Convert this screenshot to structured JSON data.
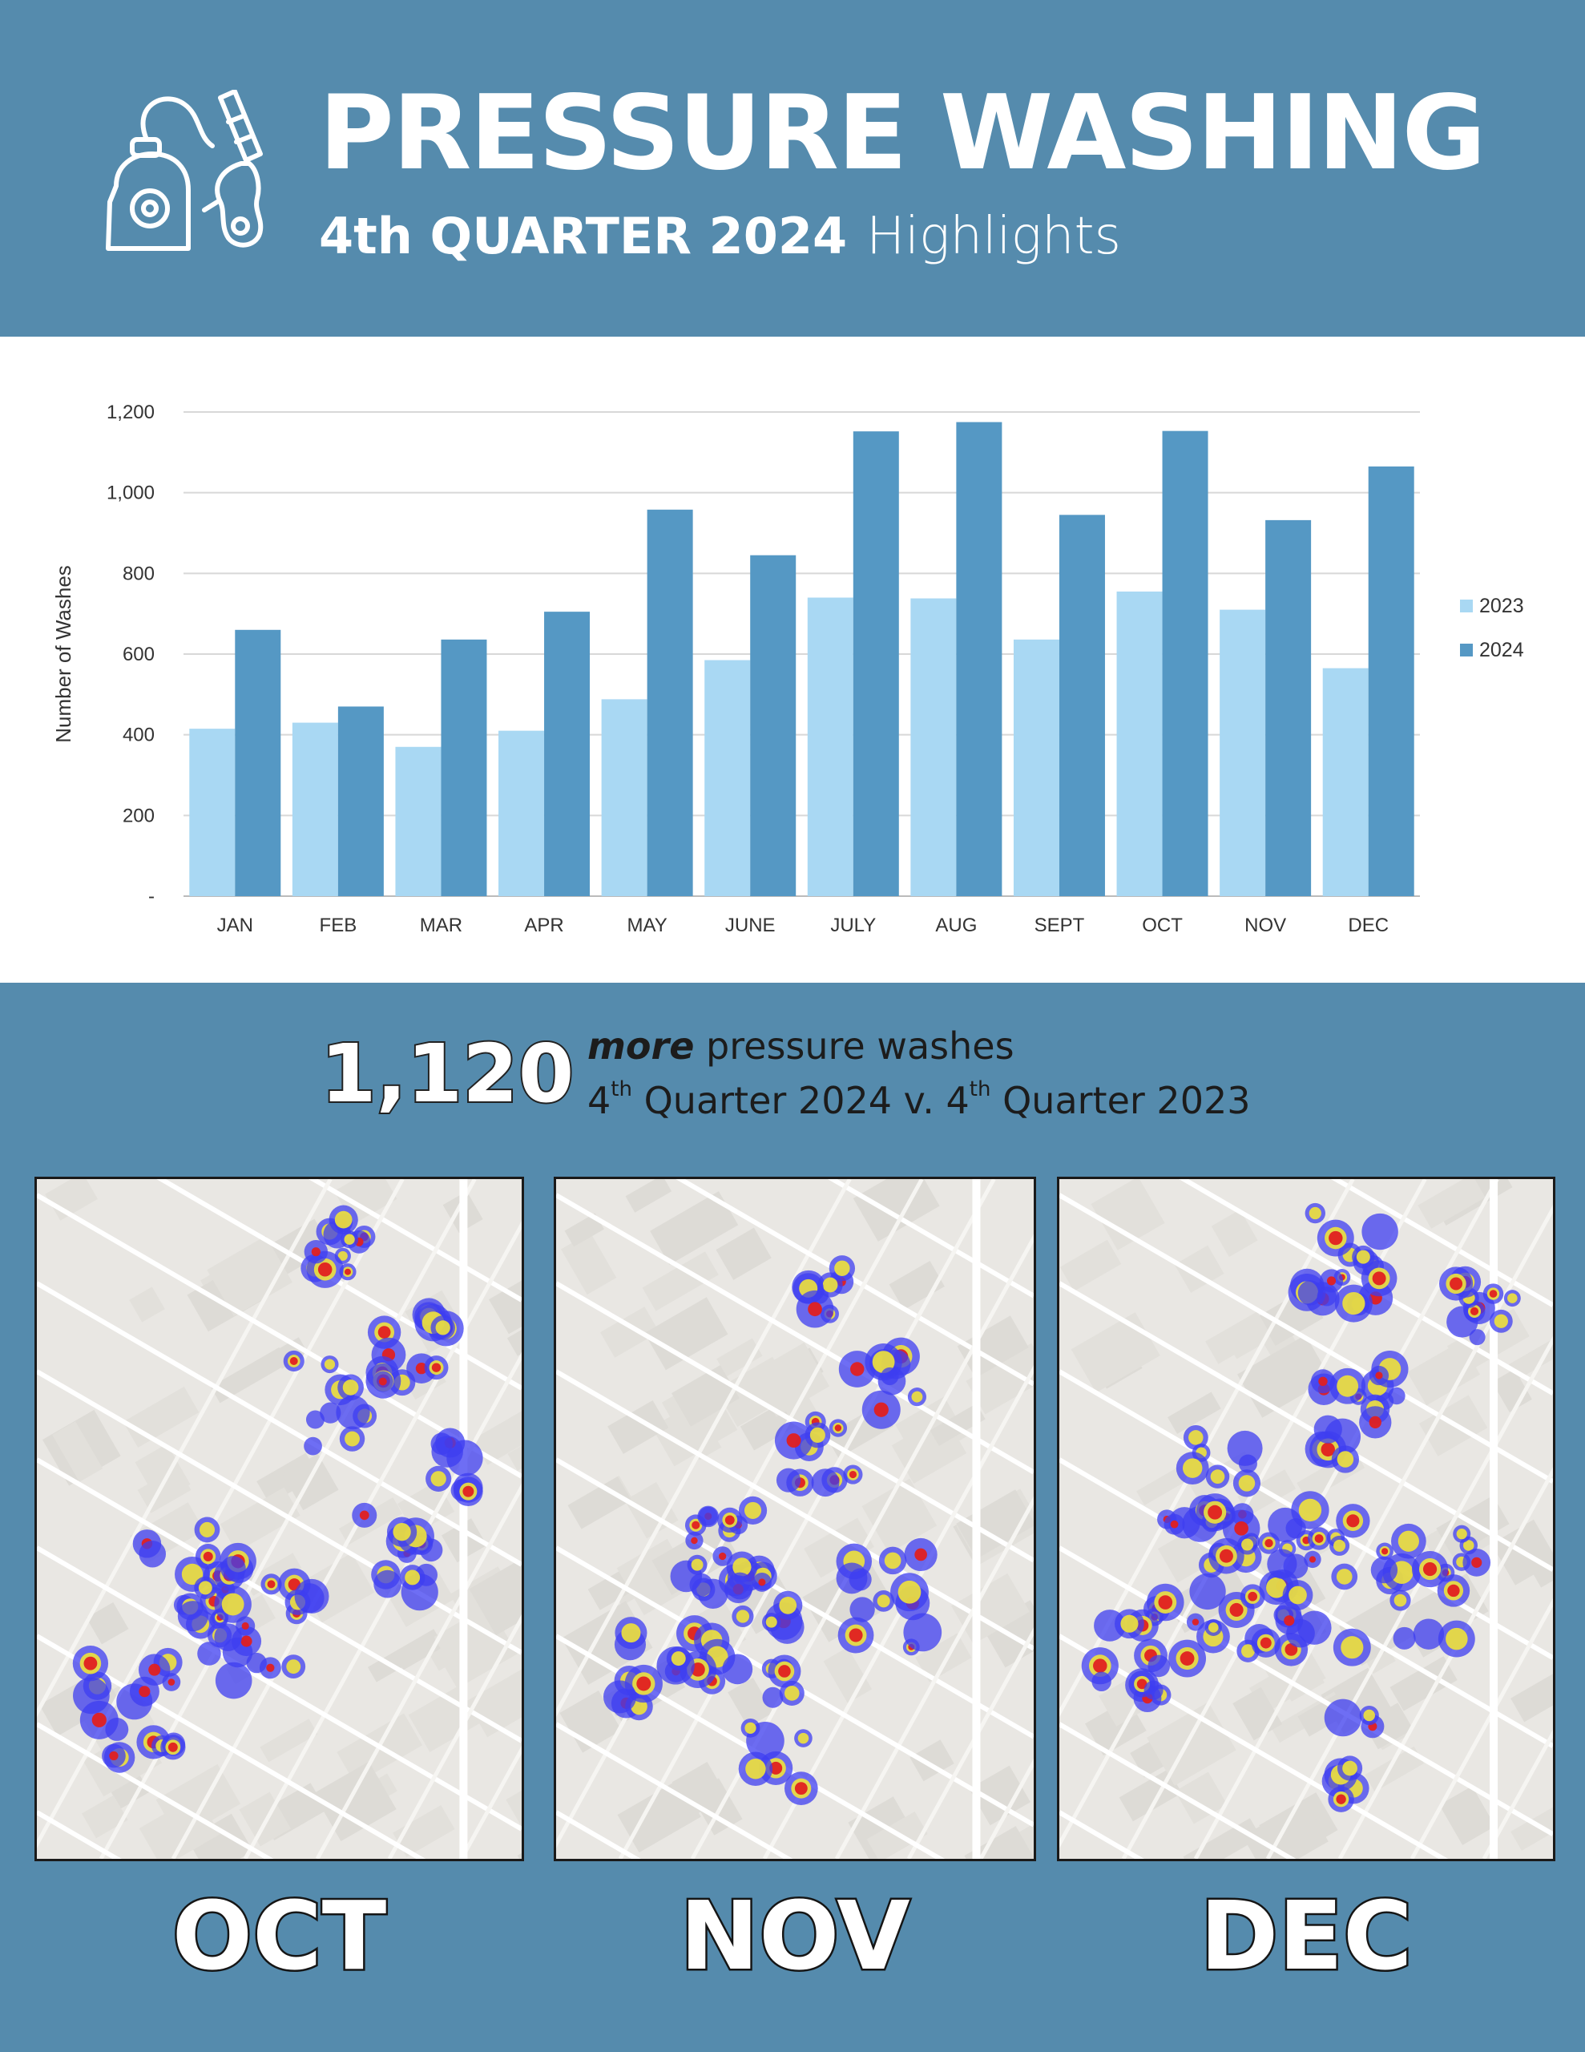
{
  "header": {
    "title": "PRESSURE WASHING",
    "quarter": "4th QUARTER 2024",
    "highlights": "Highlights",
    "icon": "pressure-washer-icon"
  },
  "chart_data": {
    "type": "bar",
    "ylabel": "Number of Washes",
    "ylim": [
      0,
      1200
    ],
    "yticks": [
      "-",
      "200",
      "400",
      "600",
      "800",
      "1,000",
      "1,200"
    ],
    "ytick_values": [
      0,
      200,
      400,
      600,
      800,
      1000,
      1200
    ],
    "grid": true,
    "legend_position": "right",
    "categories": [
      "JAN",
      "FEB",
      "MAR",
      "APR",
      "MAY",
      "JUNE",
      "JULY",
      "AUG",
      "SEPT",
      "OCT",
      "NOV",
      "DEC"
    ],
    "series": [
      {
        "name": "2023",
        "color": "#a9d8f3",
        "values": [
          415,
          430,
          370,
          410,
          488,
          585,
          740,
          738,
          636,
          755,
          710,
          565
        ]
      },
      {
        "name": "2024",
        "color": "#5598c4",
        "values": [
          660,
          470,
          636,
          705,
          958,
          845,
          1152,
          1175,
          945,
          1153,
          932,
          1065
        ]
      }
    ]
  },
  "stat": {
    "number": "1,120",
    "more": "more",
    "line1_rest": "pressure washes",
    "q_prefix": "4",
    "sup": "th",
    "part_a": "Quarter 2024 v. 4",
    "part_b": "Quarter 2023"
  },
  "maps": [
    {
      "id": "oct",
      "label": "OCT"
    },
    {
      "id": "nov",
      "label": "NOV"
    },
    {
      "id": "dec",
      "label": "DEC"
    }
  ],
  "colors": {
    "background": "#558bad",
    "heat_low": "#3d3df0",
    "heat_mid": "#f0e23a",
    "heat_high": "#e02020"
  }
}
